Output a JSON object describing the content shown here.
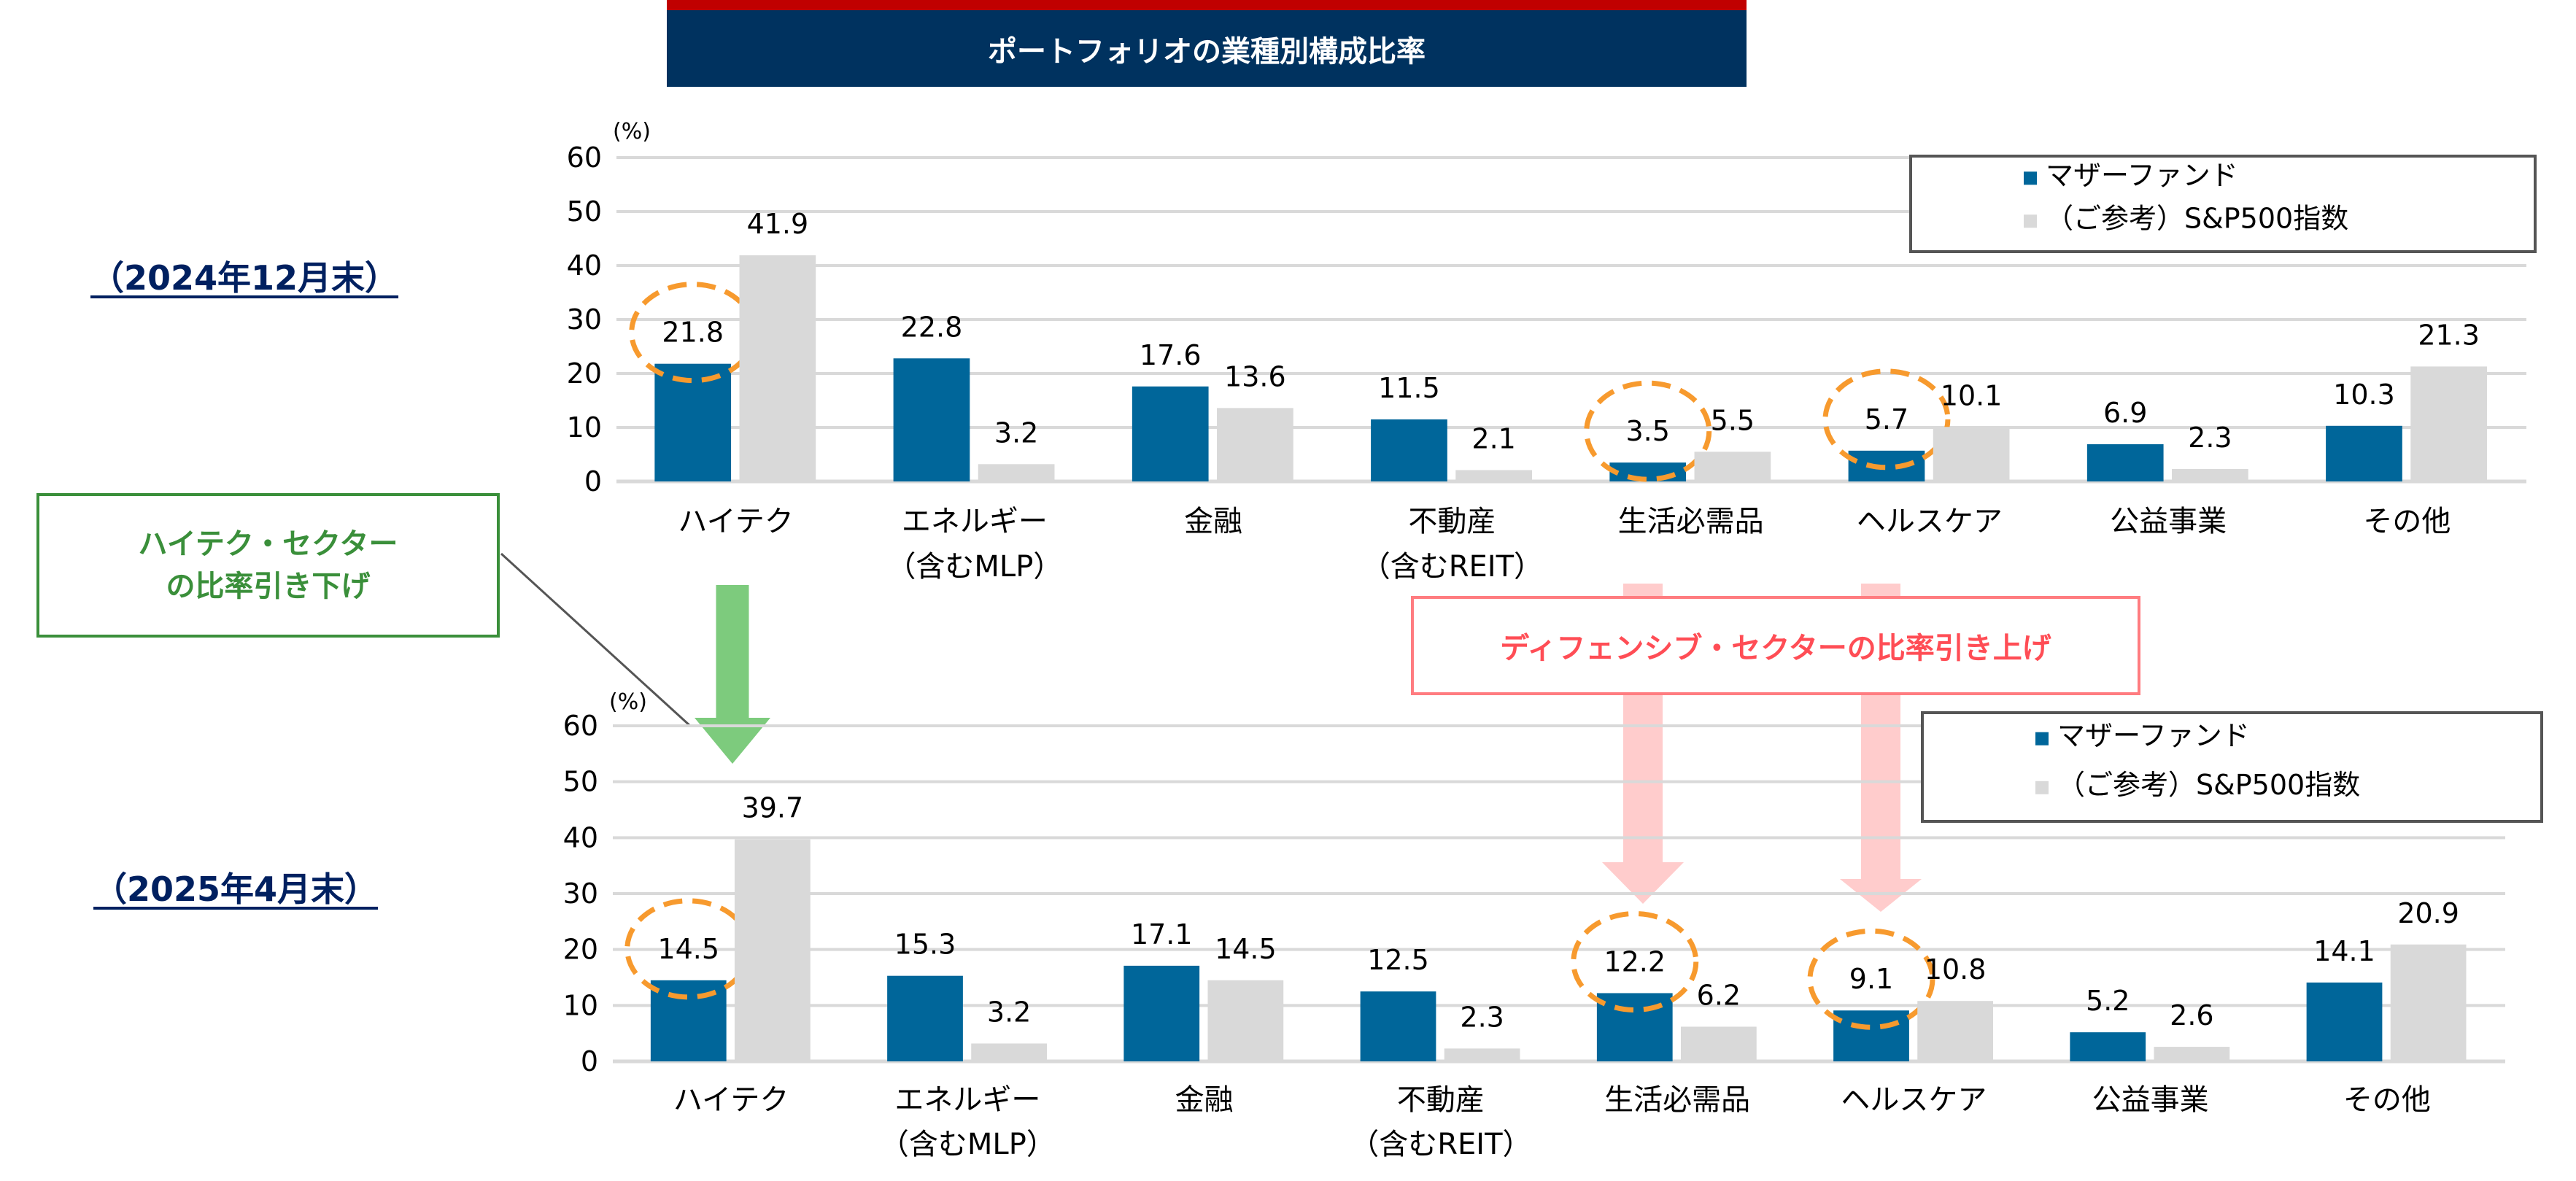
{
  "title": "ポートフォリオの業種別構成比率",
  "colors": {
    "fund": "#00669A",
    "sp500": "#D9D9D9",
    "highlight_circle": "#F79A2E",
    "title_bg": "#00325F",
    "title_stripe": "#C00000",
    "decrease_arrow": "#7DCB7D",
    "increase_arrow": "#FFCCCC"
  },
  "annotations": {
    "decrease_line1": "ハイテク・セクター",
    "decrease_line2": "の比率引き下げ",
    "increase": "ディフェンシブ・セクターの比率引き上げ"
  },
  "chart_data": [
    {
      "type": "bar",
      "period_label": "（2024年12月末）",
      "unit_label": "(%)",
      "ylim": [
        0,
        60
      ],
      "yticks": [
        0,
        10,
        20,
        30,
        40,
        50,
        60
      ],
      "grid": true,
      "legend_placement": "top-right",
      "categories": [
        "ハイテク",
        "エネルギー",
        "金融",
        "不動産",
        "生活必需品",
        "ヘルスケア",
        "公益事業",
        "その他"
      ],
      "category_notes": [
        "",
        "（含むMLP）",
        "",
        "（含むREIT）",
        "",
        "",
        "",
        ""
      ],
      "series": [
        {
          "name": "マザーファンド",
          "values": [
            21.8,
            22.8,
            17.6,
            11.5,
            3.5,
            5.7,
            6.9,
            10.3
          ]
        },
        {
          "name": "（ご参考）S&P500指数",
          "values": [
            41.9,
            3.2,
            13.6,
            2.1,
            5.5,
            10.1,
            2.3,
            21.3
          ]
        }
      ],
      "highlighted_categories": [
        0,
        4,
        5
      ]
    },
    {
      "type": "bar",
      "period_label": "（2025年4月末）",
      "unit_label": "(%)",
      "ylim": [
        0,
        60
      ],
      "yticks": [
        0,
        10,
        20,
        30,
        40,
        50,
        60
      ],
      "grid": true,
      "legend_placement": "top-right",
      "categories": [
        "ハイテク",
        "エネルギー",
        "金融",
        "不動産",
        "生活必需品",
        "ヘルスケア",
        "公益事業",
        "その他"
      ],
      "category_notes": [
        "",
        "（含むMLP）",
        "",
        "（含むREIT）",
        "",
        "",
        "",
        ""
      ],
      "series": [
        {
          "name": "マザーファンド",
          "values": [
            14.5,
            15.3,
            17.1,
            12.5,
            12.2,
            9.1,
            5.2,
            14.1
          ]
        },
        {
          "name": "（ご参考）S&P500指数",
          "values": [
            39.7,
            3.2,
            14.5,
            2.3,
            6.2,
            10.8,
            2.6,
            20.9
          ]
        }
      ],
      "highlighted_categories": [
        0,
        4,
        5
      ]
    }
  ]
}
